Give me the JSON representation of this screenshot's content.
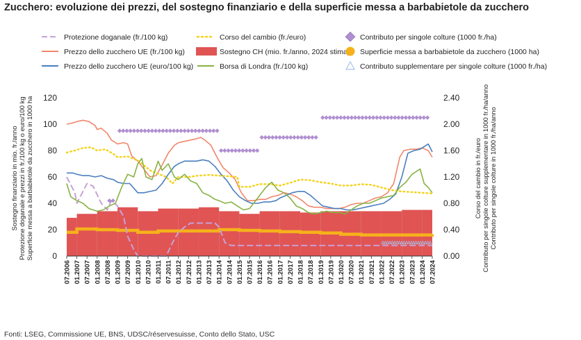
{
  "title": "Zucchero: evoluzione dei prezzi, del sostegno finanziario e della superficie messa a barbabietole da zucchero",
  "source": "Fonti: LSEG, Commissione UE, BNS, UDSC/réservesuisse, Conto dello Stato, USC",
  "colors": {
    "protezione": "#c8a2d6",
    "prezzo_chf": "#f0866a",
    "prezzo_eur": "#4a7fbf",
    "cambio": "#f2d21b",
    "sostegno": "#e05454",
    "londra": "#86b342",
    "contributo": "#b08fd0",
    "superficie": "#f5b21a",
    "supplementare": "#a8c4e8"
  },
  "legend": [
    {
      "key": "protezione",
      "label": "Protezione doganale (fr./100 kg)",
      "marker": "dash"
    },
    {
      "key": "prezzo_chf",
      "label": "Prezzo dello zucchero UE (fr./100 kg)",
      "marker": "line"
    },
    {
      "key": "prezzo_eur",
      "label": "Prezzo dello zucchero UE (euro/100 kg)",
      "marker": "line"
    },
    {
      "key": "cambio",
      "label": "Corso del cambio (fr./euro)",
      "marker": "dots"
    },
    {
      "key": "sostegno",
      "label": "Sostegno CH (mio. fr./anno, 2024 stima)",
      "marker": "bar"
    },
    {
      "key": "londra",
      "label": "Borsa di Londra (fr./100 kg)",
      "marker": "line"
    },
    {
      "key": "contributo",
      "label": "Contributo per singole colture (1000 fr./ha)",
      "marker": "diamond"
    },
    {
      "key": "superficie",
      "label": "Superficie messa a barbabietole da zucchero (1000 ha)",
      "marker": "circle"
    },
    {
      "key": "supplementare",
      "label": "Contributo supplementare per singole colture (1000 fr./ha)",
      "marker": "triangle"
    }
  ],
  "chart_data": {
    "type": "line",
    "title": "Zucchero: evoluzione dei prezzi, del sostegno finanziario e della superficie messa a barbabietole da zucchero",
    "ylabel_left": "Sostegno finanziario in mio. fr./anno\nProtezione doganale e prezzi in fr./100 kg o euro/100 kg\nSuperficie messa a barbabietole da zucchero in 1000 ha",
    "ylabel_right": "Corso del cambio in fr./euro\nContributo per singole colture supplementare in 1000 fr./ha/anno\nContributo per singole colture in 1000 fr./ha/anno",
    "ylim_left": [
      0,
      120
    ],
    "yticks_left": [
      "0",
      "20",
      "40",
      "60",
      "80",
      "100",
      "120"
    ],
    "ylim_right": [
      0,
      2.4
    ],
    "yticks_right": [
      "0.00",
      "0.40",
      "0.80",
      "1.20",
      "1.60",
      "2.00",
      "2.40"
    ],
    "xlim": [
      2006.5,
      2024.5
    ],
    "xticks": [
      "07.2006",
      "01.2007",
      "07.2007",
      "01.2008",
      "07.2008",
      "01.2009",
      "07.2009",
      "01.2010",
      "07.2010",
      "01.2011",
      "07.2011",
      "01.2012",
      "07.2012",
      "01.2013",
      "07.2013",
      "01.2014",
      "07.2014",
      "01.2015",
      "07.2015",
      "01.2016",
      "07.2016",
      "01.2017",
      "07.2017",
      "01.2018",
      "07.2018",
      "01.2019",
      "07.2019",
      "01.2020",
      "07.2020",
      "01.2021",
      "07.2021",
      "01.2022",
      "07.2022",
      "01.2023",
      "07.2023",
      "01.2024",
      "07.2024"
    ],
    "grid": false,
    "legend_position": "top",
    "sostegno_bars": [
      {
        "x0": 2006.5,
        "x1": 2007.0,
        "value": 29
      },
      {
        "x0": 2007.0,
        "x1": 2008.0,
        "value": 32
      },
      {
        "x0": 2008.0,
        "x1": 2009.0,
        "value": 34
      },
      {
        "x0": 2009.0,
        "x1": 2010.0,
        "value": 37
      },
      {
        "x0": 2010.0,
        "x1": 2011.0,
        "value": 34
      },
      {
        "x0": 2011.0,
        "x1": 2012.0,
        "value": 36
      },
      {
        "x0": 2012.0,
        "x1": 2013.0,
        "value": 36
      },
      {
        "x0": 2013.0,
        "x1": 2014.0,
        "value": 37
      },
      {
        "x0": 2014.0,
        "x1": 2015.0,
        "value": 34
      },
      {
        "x0": 2015.0,
        "x1": 2016.0,
        "value": 32
      },
      {
        "x0": 2016.0,
        "x1": 2017.0,
        "value": 34
      },
      {
        "x0": 2017.0,
        "x1": 2018.0,
        "value": 34
      },
      {
        "x0": 2018.0,
        "x1": 2019.0,
        "value": 33
      },
      {
        "x0": 2019.0,
        "x1": 2020.0,
        "value": 34
      },
      {
        "x0": 2020.0,
        "x1": 2021.0,
        "value": 34
      },
      {
        "x0": 2021.0,
        "x1": 2022.0,
        "value": 34
      },
      {
        "x0": 2022.0,
        "x1": 2023.0,
        "value": 34
      },
      {
        "x0": 2023.0,
        "x1": 2024.0,
        "value": 35
      },
      {
        "x0": 2024.0,
        "x1": 2024.5,
        "value": 35
      }
    ],
    "series": [
      {
        "key": "protezione",
        "axis": "left",
        "x": [
          2006.5,
          2006.9,
          2007.0,
          2007.5,
          2007.8,
          2008.2,
          2008.5,
          2008.7,
          2009.0,
          2009.3,
          2009.5,
          2009.8,
          2010.0,
          2010.3,
          2010.6,
          2011.0,
          2011.4,
          2011.7,
          2012.0,
          2012.3,
          2012.6,
          2012.9,
          2013.2,
          2013.5,
          2013.8,
          2014.0,
          2014.3,
          2014.6,
          2014.9,
          2015.2,
          2015.5,
          2016.0,
          2016.5,
          2017.0,
          2017.5,
          2018.0,
          2018.5,
          2019.0,
          2019.5,
          2020.0,
          2020.5,
          2021.0,
          2021.5,
          2022.0,
          2022.5,
          2023.0,
          2023.5,
          2024.0,
          2024.5
        ],
        "y": [
          60,
          48,
          40,
          55,
          53,
          40,
          35,
          42,
          38,
          30,
          15,
          5,
          0,
          0,
          0,
          0,
          0,
          10,
          18,
          22,
          25,
          25,
          25,
          25,
          25,
          22,
          10,
          8,
          8,
          8,
          8,
          8,
          8,
          8,
          8,
          8,
          8,
          8,
          8,
          8,
          8,
          8,
          8,
          8,
          8,
          8,
          8,
          8,
          8
        ]
      },
      {
        "key": "prezzo_chf",
        "axis": "left",
        "x": [
          2006.5,
          2006.8,
          2007.0,
          2007.3,
          2007.6,
          2007.9,
          2008.0,
          2008.2,
          2008.5,
          2008.7,
          2009.0,
          2009.3,
          2009.5,
          2009.7,
          2010.0,
          2010.3,
          2010.6,
          2010.9,
          2011.2,
          2011.5,
          2011.8,
          2012.0,
          2012.3,
          2012.6,
          2012.9,
          2013.1,
          2013.3,
          2013.6,
          2013.9,
          2014.2,
          2014.5,
          2014.8,
          2015.1,
          2015.4,
          2015.7,
          2016.0,
          2016.3,
          2016.6,
          2016.9,
          2017.2,
          2017.5,
          2017.8,
          2018.1,
          2018.4,
          2018.7,
          2019.0,
          2019.3,
          2019.6,
          2019.9,
          2020.2,
          2020.5,
          2020.8,
          2021.1,
          2021.4,
          2021.7,
          2022.0,
          2022.3,
          2022.6,
          2022.9,
          2023.1,
          2023.4,
          2023.7,
          2024.0,
          2024.3,
          2024.5
        ],
        "y": [
          100,
          101,
          102,
          103,
          102,
          99,
          96,
          97,
          93,
          88,
          85,
          86,
          85,
          76,
          72,
          66,
          60,
          61,
          69,
          78,
          84,
          86,
          87,
          88,
          89,
          90,
          88,
          84,
          75,
          67,
          63,
          58,
          48,
          42,
          42,
          43,
          43,
          45,
          46,
          48,
          47,
          45,
          42,
          38,
          37,
          37,
          36,
          36,
          36,
          37,
          39,
          40,
          40,
          42,
          44,
          45,
          48,
          55,
          75,
          80,
          81,
          81,
          82,
          80,
          75
        ]
      },
      {
        "key": "prezzo_eur",
        "axis": "left",
        "x": [
          2006.5,
          2006.8,
          2007.0,
          2007.3,
          2007.6,
          2007.9,
          2008.2,
          2008.5,
          2008.8,
          2009.0,
          2009.3,
          2009.6,
          2010.0,
          2010.3,
          2010.6,
          2010.9,
          2011.2,
          2011.5,
          2011.8,
          2012.0,
          2012.3,
          2012.6,
          2012.9,
          2013.2,
          2013.5,
          2013.8,
          2014.1,
          2014.4,
          2014.7,
          2015.0,
          2015.3,
          2015.6,
          2015.9,
          2016.2,
          2016.5,
          2016.8,
          2017.0,
          2017.3,
          2017.6,
          2017.9,
          2018.2,
          2018.5,
          2018.8,
          2019.1,
          2019.4,
          2019.7,
          2020.0,
          2020.3,
          2020.6,
          2020.9,
          2021.2,
          2021.5,
          2021.8,
          2022.1,
          2022.4,
          2022.7,
          2023.0,
          2023.3,
          2023.6,
          2023.9,
          2024.1,
          2024.3,
          2024.5
        ],
        "y": [
          63,
          63,
          62,
          61,
          61,
          60,
          61,
          59,
          58,
          56,
          55,
          55,
          48,
          48,
          49,
          50,
          55,
          62,
          68,
          70,
          72,
          72,
          72,
          73,
          72,
          68,
          62,
          57,
          50,
          45,
          42,
          40,
          40,
          41,
          41,
          42,
          44,
          46,
          48,
          49,
          49,
          46,
          42,
          38,
          37,
          36,
          36,
          35,
          35,
          36,
          37,
          38,
          39,
          40,
          43,
          47,
          60,
          78,
          80,
          81,
          83,
          85,
          79
        ]
      },
      {
        "key": "cambio",
        "axis": "right",
        "x": [
          2006.5,
          2006.9,
          2007.3,
          2007.7,
          2008.0,
          2008.4,
          2008.8,
          2009.0,
          2009.5,
          2010.0,
          2010.3,
          2010.6,
          2011.0,
          2011.4,
          2011.7,
          2012.0,
          2012.5,
          2013.0,
          2013.5,
          2014.0,
          2014.5,
          2014.9,
          2015.0,
          2015.5,
          2016.0,
          2016.5,
          2017.0,
          2017.5,
          2018.0,
          2018.5,
          2019.0,
          2019.5,
          2020.0,
          2020.5,
          2021.0,
          2021.5,
          2022.0,
          2022.5,
          2023.0,
          2023.5,
          2024.0,
          2024.5
        ],
        "y": [
          1.57,
          1.6,
          1.64,
          1.65,
          1.6,
          1.62,
          1.55,
          1.5,
          1.51,
          1.45,
          1.38,
          1.3,
          1.25,
          1.2,
          1.1,
          1.2,
          1.2,
          1.22,
          1.23,
          1.22,
          1.21,
          1.2,
          1.05,
          1.05,
          1.09,
          1.09,
          1.07,
          1.11,
          1.16,
          1.15,
          1.12,
          1.1,
          1.07,
          1.07,
          1.09,
          1.08,
          1.04,
          1.0,
          0.98,
          0.97,
          0.96,
          0.95
        ]
      },
      {
        "key": "londra",
        "axis": "left",
        "x": [
          2006.5,
          2006.7,
          2007.0,
          2007.3,
          2007.6,
          2008.0,
          2008.3,
          2008.6,
          2008.9,
          2009.2,
          2009.5,
          2009.8,
          2010.0,
          2010.2,
          2010.4,
          2010.7,
          2011.0,
          2011.2,
          2011.5,
          2011.8,
          2012.0,
          2012.3,
          2012.6,
          2012.9,
          2013.2,
          2013.5,
          2013.8,
          2014.0,
          2014.3,
          2014.6,
          2014.9,
          2015.2,
          2015.5,
          2015.8,
          2016.0,
          2016.3,
          2016.6,
          2016.9,
          2017.2,
          2017.5,
          2017.8,
          2018.1,
          2018.4,
          2018.7,
          2019.0,
          2019.3,
          2019.6,
          2019.9,
          2020.2,
          2020.5,
          2020.8,
          2021.1,
          2021.4,
          2021.7,
          2022.0,
          2022.3,
          2022.6,
          2022.9,
          2023.2,
          2023.5,
          2023.7,
          2023.9,
          2024.1,
          2024.3,
          2024.5
        ],
        "y": [
          55,
          45,
          42,
          40,
          36,
          34,
          35,
          38,
          40,
          52,
          62,
          60,
          70,
          74,
          60,
          58,
          72,
          65,
          70,
          60,
          58,
          62,
          57,
          55,
          48,
          46,
          43,
          42,
          40,
          41,
          38,
          35,
          36,
          42,
          46,
          52,
          56,
          50,
          48,
          44,
          38,
          36,
          33,
          32,
          33,
          34,
          33,
          33,
          32,
          35,
          38,
          40,
          40,
          42,
          44,
          45,
          46,
          52,
          56,
          62,
          64,
          66,
          55,
          52,
          48
        ]
      }
    ],
    "contributo": [
      {
        "x0": 2008.5,
        "x1": 2009.0,
        "value": 0.84
      },
      {
        "x0": 2009.0,
        "x1": 2014.0,
        "value": 1.9
      },
      {
        "x0": 2014.0,
        "x1": 2016.0,
        "value": 1.6
      },
      {
        "x0": 2016.0,
        "x1": 2019.0,
        "value": 1.8
      },
      {
        "x0": 2019.0,
        "x1": 2024.5,
        "value": 2.1
      }
    ],
    "superficie": {
      "x": [
        2006.5,
        2007.0,
        2008.0,
        2009.0,
        2010.0,
        2011.0,
        2012.0,
        2013.0,
        2014.0,
        2015.0,
        2016.0,
        2017.0,
        2018.0,
        2019.0,
        2020.0,
        2021.0,
        2022.0,
        2023.0,
        2024.0,
        2024.5
      ],
      "y": [
        18,
        20.5,
        20,
        19.5,
        18,
        19,
        19,
        19,
        20,
        19.5,
        19,
        18.5,
        18,
        17.5,
        16.5,
        16,
        16,
        16,
        16,
        16.5
      ]
    },
    "supplementare": [
      {
        "x0": 2022.0,
        "x1": 2024.5,
        "value": 0.2
      }
    ]
  }
}
